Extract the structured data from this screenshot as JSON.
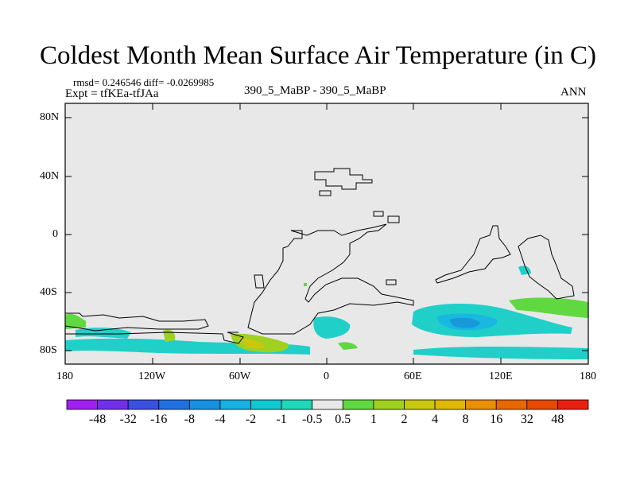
{
  "title": "Coldest Month Mean Surface Air Temperature (in C)",
  "stats": "rmsd= 0.246546 diff= -0.0269985",
  "expt": "Expt = tfKEa-tfJAa",
  "comparison": "390_5_MaBP - 390_5_MaBP",
  "period": "ANN",
  "lat_labels": [
    "80N",
    "40N",
    "0",
    "40S",
    "80S"
  ],
  "lon_labels": [
    "180",
    "120W",
    "60W",
    "0",
    "60E",
    "120E",
    "180"
  ],
  "colorbar": {
    "labels": [
      "-48",
      "-32",
      "-16",
      "-8",
      "-4",
      "-2",
      "-1",
      "-0.5",
      "0.5",
      "1",
      "2",
      "4",
      "8",
      "16",
      "32",
      "48"
    ],
    "colors": [
      "#a020f0",
      "#7030e8",
      "#3c50e0",
      "#2070e0",
      "#1890e0",
      "#18b0e0",
      "#10c8d0",
      "#20d8b8",
      "#e8e8e8",
      "#60d840",
      "#a0d020",
      "#c8c810",
      "#e0b800",
      "#e89000",
      "#e86800",
      "#e84800",
      "#e82010"
    ]
  },
  "colors": {
    "background": "#e8e8e8",
    "cyan": "#20d0c8",
    "light_blue": "#18b8e0",
    "blue": "#1898d8",
    "green": "#60d840",
    "yellow_green": "#a0d020",
    "yellow": "#c8c810"
  }
}
